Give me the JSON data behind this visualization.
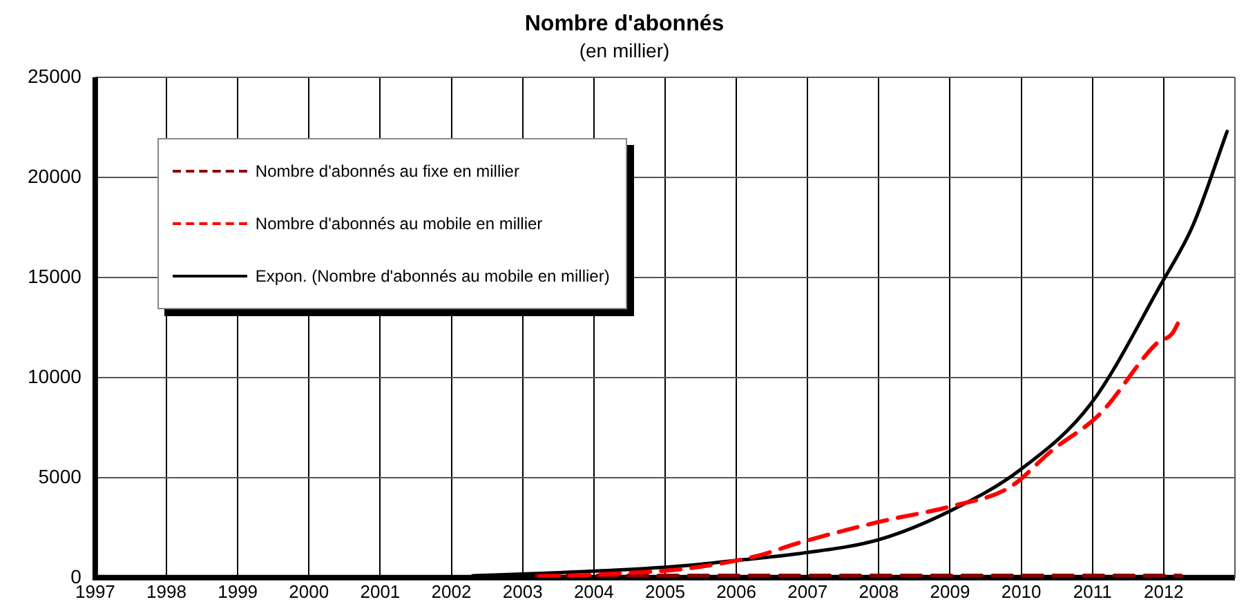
{
  "chart_data": {
    "type": "line",
    "title": "Nombre d'abonnés",
    "subtitle": "(en millier)",
    "xlim": [
      1997,
      2013
    ],
    "xticks": [
      1997,
      1998,
      1999,
      2000,
      2001,
      2002,
      2003,
      2004,
      2005,
      2006,
      2007,
      2008,
      2009,
      2010,
      2011,
      2012,
      {
        "value": 2013,
        "label": null
      }
    ],
    "ylim": [
      0,
      25000
    ],
    "yticks": [
      0,
      5000,
      10000,
      15000,
      20000,
      25000
    ],
    "grid": true,
    "legend": "top left",
    "series": [
      {
        "name": "Nombre d'abonnés au fixe en millier",
        "color": "#8b0000",
        "line_style": "dashed",
        "x": [
          2003.2,
          2005.0,
          2007.0,
          2009.0,
          2011.0,
          2012.24
        ],
        "values": [
          100,
          100,
          100,
          100,
          100,
          100
        ]
      },
      {
        "name": "Nombre d'abonnés au mobile en millier",
        "color": "#ff0000",
        "line_style": "dashed",
        "x": [
          2003.24,
          2004.28,
          2005.27,
          2006.31,
          2006.84,
          2008.02,
          2009.0,
          2009.83,
          2010.43,
          2011.11,
          2011.9,
          2012.12,
          2012.24
        ],
        "values": [
          50,
          200,
          440,
          1100,
          1700,
          2800,
          3550,
          4500,
          6350,
          8200,
          11700,
          12200,
          13000
        ]
      },
      {
        "name": "Expon. (Nombre d'abonnés au mobile en millier)",
        "color": "#000000",
        "line_style": "solid",
        "x": [
          2002.3,
          2003.3,
          2004.28,
          2005.27,
          2006.25,
          2006.84,
          2008.02,
          2009.0,
          2009.99,
          2010.98,
          2011.96,
          2012.41,
          2012.89
        ],
        "values": [
          100,
          220,
          370,
          600,
          950,
          1180,
          1920,
          3330,
          5400,
          8700,
          14650,
          17600,
          22300
        ]
      }
    ]
  }
}
